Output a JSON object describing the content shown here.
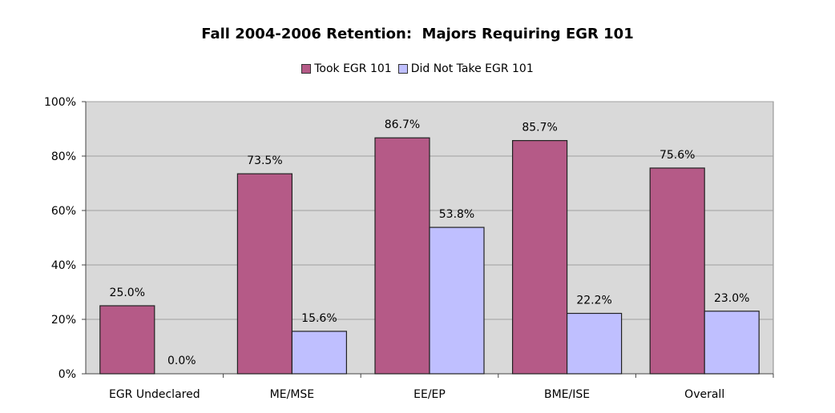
{
  "colors": {
    "plot_background": "#d9d9d9",
    "gridline": "#a0a0a0",
    "series_took": "#b55a87",
    "series_did_not": "#bfbfff",
    "bar_border": "#222222"
  },
  "chart_data": {
    "type": "bar",
    "title": "Fall 2004-2006 Retention:  Majors Requiring EGR 101",
    "xlabel": "",
    "ylabel": "",
    "ylim": [
      0,
      100
    ],
    "yticks": [
      0,
      20,
      40,
      60,
      80,
      100
    ],
    "ytick_labels": [
      "0%",
      "20%",
      "40%",
      "60%",
      "80%",
      "100%"
    ],
    "grid": true,
    "legend_position": "top",
    "categories": [
      "EGR Undeclared",
      "ME/MSE",
      "EE/EP",
      "BME/ISE",
      "Overall"
    ],
    "series": [
      {
        "name": "Took EGR 101",
        "color": "#b55a87",
        "values": [
          25.0,
          73.5,
          86.7,
          85.7,
          75.6
        ],
        "labels": [
          "25.0%",
          "73.5%",
          "86.7%",
          "85.7%",
          "75.6%"
        ]
      },
      {
        "name": "Did Not Take EGR 101",
        "color": "#bfbfff",
        "values": [
          0.0,
          15.6,
          53.8,
          22.2,
          23.0
        ],
        "labels": [
          "0.0%",
          "15.6%",
          "53.8%",
          "22.2%",
          "23.0%"
        ]
      }
    ]
  }
}
